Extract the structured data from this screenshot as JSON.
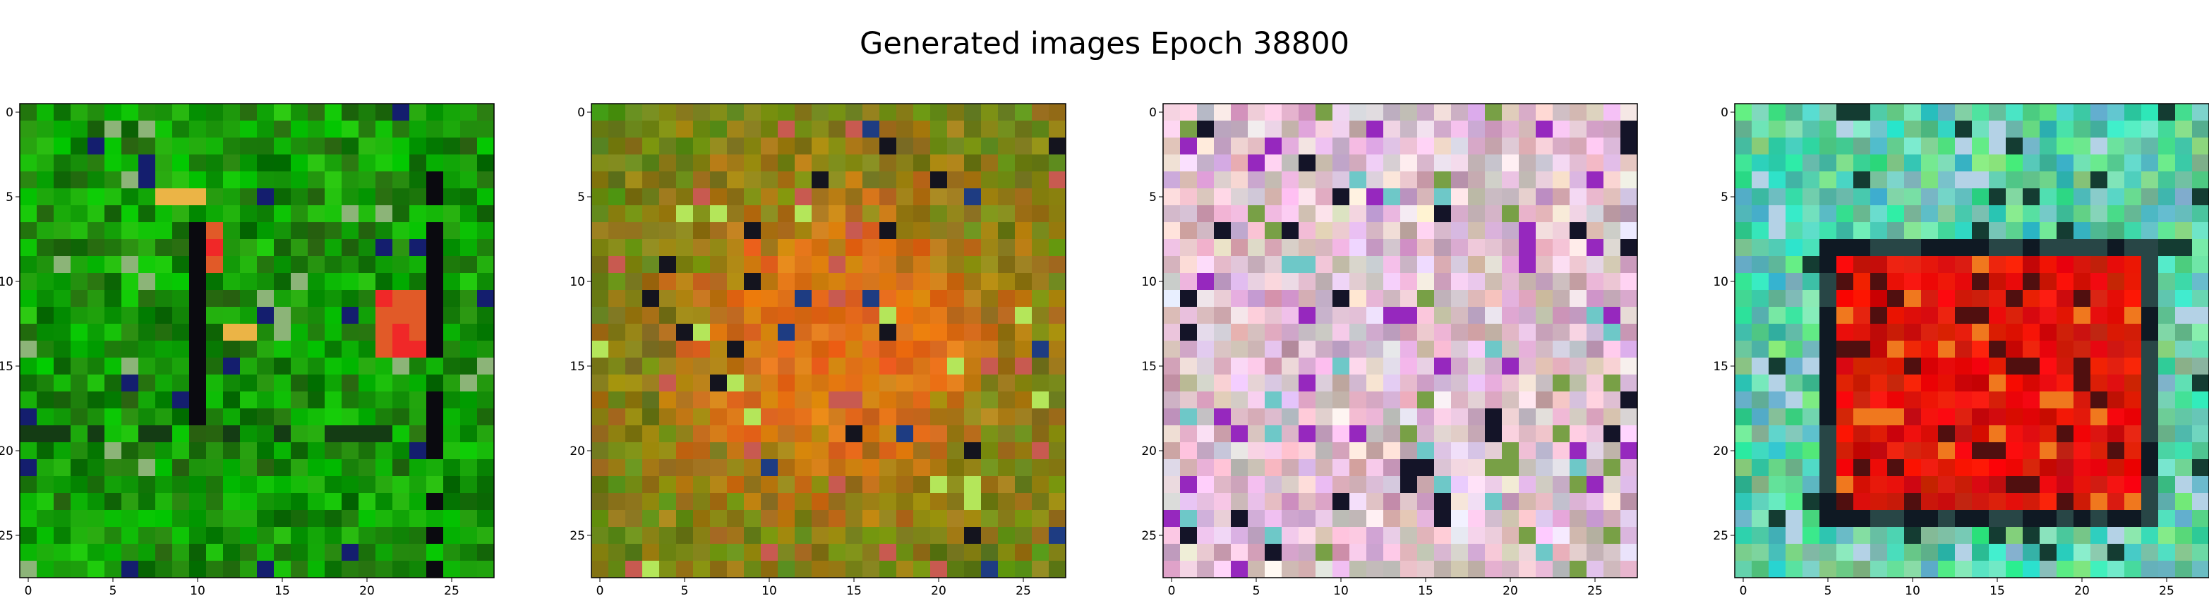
{
  "title": "Generated images Epoch 38800",
  "panels": [
    {
      "palette": "green",
      "x_ticks": [
        "0",
        "5",
        "10",
        "15",
        "20",
        "25"
      ],
      "y_ticks": [
        "0",
        "5",
        "10",
        "15",
        "20",
        "25"
      ]
    },
    {
      "palette": "olive",
      "x_ticks": [
        "0",
        "5",
        "10",
        "15",
        "20",
        "25"
      ],
      "y_ticks": [
        "0",
        "5",
        "10",
        "15",
        "20",
        "25"
      ]
    },
    {
      "palette": "pastel",
      "x_ticks": [
        "0",
        "5",
        "10",
        "15",
        "20",
        "25"
      ],
      "y_ticks": [
        "0",
        "5",
        "10",
        "15",
        "20",
        "25"
      ]
    },
    {
      "palette": "teal",
      "x_ticks": [
        "0",
        "5",
        "10",
        "15",
        "20",
        "25"
      ],
      "y_ticks": [
        "0",
        "5",
        "10",
        "15",
        "20",
        "25"
      ]
    }
  ]
}
